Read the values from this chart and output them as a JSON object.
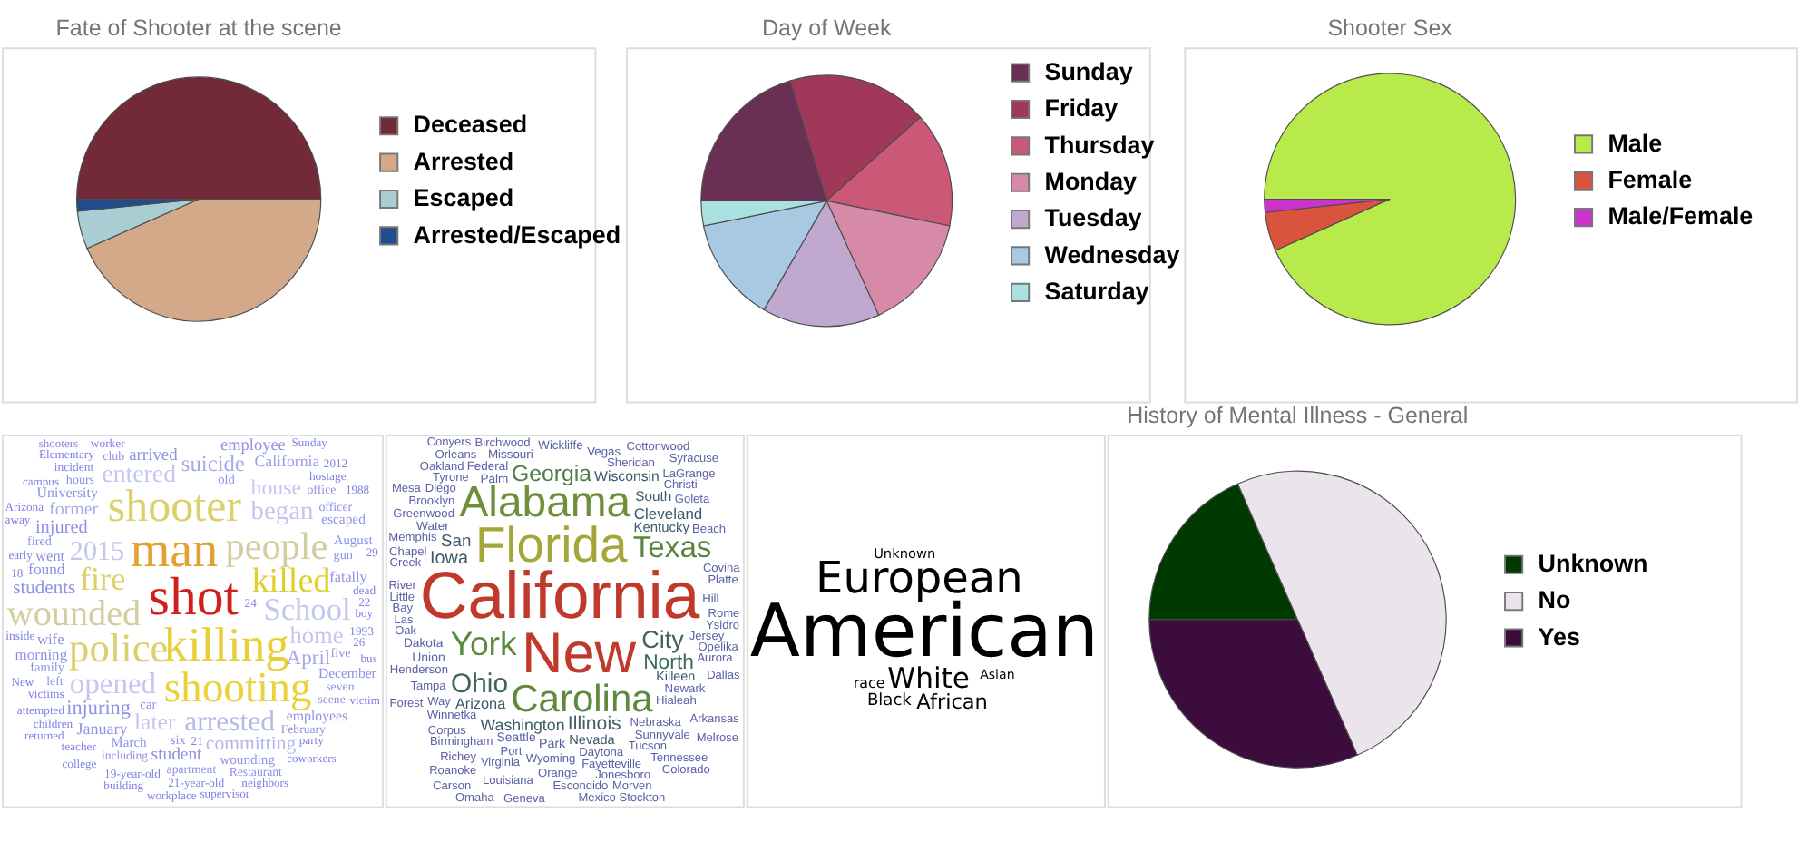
{
  "chart_data": [
    {
      "type": "pie",
      "title": "Fate of Shooter at the scene",
      "categories": [
        "Deceased",
        "Arrested",
        "Escaped",
        "Arrested/Escaped"
      ],
      "values": [
        50,
        43.4,
        5,
        1.6
      ],
      "colors": [
        "#722a38",
        "#d4a98a",
        "#a9cdd2",
        "#224d8c"
      ],
      "legend": "right"
    },
    {
      "type": "pie",
      "title": "Day of Week",
      "categories": [
        "Sunday",
        "Friday",
        "Thursday",
        "Monday",
        "Tuesday",
        "Wednesday",
        "Saturday"
      ],
      "values": [
        20.3,
        18.1,
        14.8,
        15.0,
        15.1,
        13.5,
        3.2
      ],
      "colors": [
        "#6a2f55",
        "#a0385a",
        "#cc5878",
        "#d68aa8",
        "#c1a8cf",
        "#a9c8e2",
        "#a9e0e0"
      ],
      "legend": "right"
    },
    {
      "type": "pie",
      "title": "Shooter Sex",
      "categories": [
        "Male",
        "Female",
        "Male/Female"
      ],
      "values": [
        93.3,
        5.0,
        1.7
      ],
      "colors": [
        "#b8ea4c",
        "#d9533d",
        "#cc33cc"
      ],
      "legend": "right"
    },
    {
      "type": "other",
      "categories": [
        "shot",
        "man",
        "killing",
        "shooter",
        "shooting",
        "police",
        "people",
        "wounded",
        "killed",
        "fire",
        "School",
        "opened",
        "arrested",
        "2015",
        "began",
        "entered",
        "home",
        "later",
        "suicide",
        "house",
        "April",
        "injuring",
        "committing",
        "students",
        "injured",
        "former",
        "student",
        "arrived",
        "employee",
        "January",
        "California",
        "found",
        "morning",
        "wife",
        "went",
        "fatally",
        "University",
        "employees",
        "December",
        "escaped",
        "wounding",
        "March",
        "August",
        "car",
        "old",
        "family",
        "six",
        "gun",
        "five",
        "fired",
        "hours",
        "club",
        "officer",
        "office",
        "seven",
        "left",
        "apartment",
        "scene",
        "Restaurant",
        "February",
        "including",
        "incident",
        "victims",
        "inside",
        "dead",
        "worker",
        "21-year-old",
        "19-year-old",
        "hostage",
        "teacher",
        "attempted",
        "children",
        "Elementary",
        "1993",
        "24",
        "early",
        "party",
        "21",
        "Arizona",
        "22",
        "New",
        "boy",
        "campus",
        "Sunday",
        "away",
        "coworkers",
        "26",
        "2012",
        "1988",
        "18",
        "29",
        "bus",
        "neighbors",
        "supervisor",
        "workplace",
        "building",
        "college",
        "returned",
        "shooters",
        "victim"
      ],
      "colors": [
        "#d0201e",
        "#e3a033",
        "#e8cf38",
        "#dcd06a",
        "#ebd23c",
        "#dcd06a",
        "#d2cea0",
        "#d2cea0",
        "#ddcf2e",
        "#dcd06a",
        "#c3c7f0",
        "#c3c7f0",
        "#b4b9ec",
        "#c3c7f0",
        "#c3c7f0",
        "#c3c7f0",
        "#c3c7f0",
        "#c3c7f0",
        "#a7aaea",
        "#c3c7f0",
        "#a4a6ea",
        "#8e91e5",
        "#b3b6ee",
        "#8e91e5",
        "#8e91e5",
        "#a7aaea",
        "#8e91e5",
        "#8e91e5",
        "#8e91e5",
        "#8e91e5",
        "#9a9de7",
        "#8e91e5",
        "#8e91e5",
        "#8e91e5",
        "#8e91e5",
        "#8e91e5",
        "#8e91e5",
        "#8e91e5",
        "#8e91e5",
        "#8e91e5",
        "#8e91e5",
        "#8e91e5",
        "#8e91e5",
        "#8e91e5",
        "#8e91e5",
        "#8e91e5",
        "#8e91e5",
        "#8e91e5",
        "#8e91e5",
        "#8e91e5",
        "#8e91e5",
        "#8e91e5",
        "#8e91e5",
        "#8e91e5",
        "#8e91e5",
        "#8e91e5",
        "#8e91e5",
        "#8e91e5",
        "#8e91e5",
        "#8e91e5",
        "#8e91e5",
        "#7f82e3",
        "#7f82e3",
        "#7f82e3",
        "#7f82e3",
        "#7f82e3",
        "#7f82e3",
        "#7f82e3",
        "#7f82e3",
        "#7f82e3",
        "#7f82e3",
        "#7f82e3",
        "#7f82e3",
        "#7f82e3",
        "#7f82e3",
        "#7f82e3",
        "#7f82e3",
        "#7f82e3",
        "#7f82e3",
        "#7f82e3",
        "#7f82e3",
        "#7f82e3",
        "#7f82e3",
        "#7f82e3",
        "#7f82e3",
        "#7f82e3",
        "#7f82e3",
        "#7f82e3",
        "#7f82e3",
        "#7f82e3",
        "#7f82e3",
        "#7f82e3",
        "#7f82e3",
        "#7f82e3",
        "#7f82e3",
        "#7f82e3",
        "#7f82e3",
        "#7f82e3",
        "#7f82e3",
        "#7f82e3"
      ]
    },
    {
      "type": "other",
      "categories": [
        "California",
        "New",
        "Florida",
        "Alabama",
        "Carolina",
        "York",
        "Texas",
        "Ohio",
        "City",
        "Georgia",
        "North",
        "Illinois",
        "Iowa",
        "San",
        "Washington",
        "Cleveland",
        "Arizona",
        "Wisconsin",
        "South",
        "Kentucky",
        "Nevada",
        "Killeen",
        "Park",
        "Union",
        "Seattle",
        "Dakota",
        "Water",
        "Palm",
        "Federal",
        "Missouri",
        "Wickliffe",
        "Vegas",
        "Sheridan",
        "Newark",
        "Hialeah",
        "Nebraska",
        "Daytona",
        "Wyoming",
        "Greenwood",
        "Winnetka",
        "Henderson",
        "Birchwood",
        "Memphis",
        "Brooklyn",
        "Jersey",
        "Tampa",
        "Chapel",
        "Sunnyvale",
        "Tyrone",
        "Opelika",
        "Port",
        "Fayetteville",
        "Tucson",
        "Creek",
        "Covina",
        "Christi",
        "Diego",
        "Goleta",
        "Orange",
        "Virginia",
        "Way",
        "Birmingham",
        "Corpus",
        "Oak",
        "Las",
        "Bay",
        "Cottonwood",
        "Hill",
        "Aurora",
        "Beach",
        "Ysidro",
        "Platte",
        "Rome",
        "Oakland",
        "Orleans",
        "LaGrange",
        "Jonesboro",
        "Escondido",
        "Louisiana",
        "Syracuse",
        "Richey",
        "Arkansas",
        "Conyers",
        "Tennessee",
        "Morven",
        "Mexico",
        "Geneva",
        "Roanoke",
        "Colorado",
        "Stockton",
        "Melrose",
        "Omaha",
        "River",
        "Forest",
        "Carson",
        "Dallas",
        "Mesa",
        "Little"
      ],
      "colors": [
        "#c0392b",
        "#c0392b",
        "#a5a63a",
        "#6f8f3a",
        "#5f8a3c",
        "#5b8a3e",
        "#5a843f",
        "#3d6660",
        "#3e6462",
        "#4b7d47",
        "#3b6b5e",
        "#3c5e64",
        "#3c5a6c",
        "#3c5a6c",
        "#3c5e66",
        "#3c5a6c",
        "#3c5a6c",
        "#3c5a6c",
        "#3c5a6c",
        "#3c5a6c",
        "#3c5a6c",
        "#3c5a6c",
        "#5a60a6",
        "#5a60a6",
        "#5a60a6",
        "#5a60a6",
        "#5a60a6",
        "#5a60a6",
        "#5a60a6",
        "#5a60a6",
        "#5a60a6",
        "#5a60a6",
        "#5a60a6",
        "#5a60a6",
        "#5a60a6",
        "#5a60a6",
        "#5a60a6",
        "#5a60a6",
        "#5a60a6",
        "#5a60a6",
        "#5a60a6",
        "#5a60a6",
        "#5a60a6",
        "#5a60a6",
        "#5a60a6",
        "#5a60a6",
        "#5a60a6",
        "#5a60a6",
        "#5a60a6",
        "#5a60a6",
        "#5a60a6",
        "#5a60a6",
        "#5a60a6",
        "#5a60a6",
        "#5a60a6",
        "#5a60a6",
        "#5a60a6",
        "#5a60a6",
        "#5a60a6",
        "#5a60a6",
        "#5a60a6",
        "#5a60a6",
        "#5a60a6",
        "#5a60a6",
        "#5a60a6",
        "#5a60a6",
        "#5a60a6",
        "#5a60a6",
        "#5a60a6",
        "#5a60a6",
        "#5a60a6",
        "#5a60a6",
        "#5a60a6",
        "#5a60a6",
        "#5a60a6",
        "#5a60a6",
        "#5a60a6",
        "#5a60a6",
        "#5a60a6",
        "#5a60a6",
        "#5a60a6",
        "#5a60a6",
        "#5a60a6",
        "#5a60a6",
        "#5a60a6",
        "#5a60a6",
        "#5a60a6",
        "#5a60a6",
        "#5a60a6",
        "#5a60a6",
        "#5a60a6",
        "#5a60a6",
        "#5a60a6",
        "#5a60a6",
        "#5a60a6",
        "#5a60a6",
        "#5a60a6",
        "#5a60a6"
      ]
    },
    {
      "type": "other",
      "categories": [
        "American",
        "European",
        "White",
        "African",
        "Black",
        "race",
        "Unknown",
        "Asian"
      ],
      "colors": [
        "#000000",
        "#000000",
        "#000000",
        "#000000",
        "#000000",
        "#000000",
        "#000000",
        "#000000"
      ]
    },
    {
      "type": "pie",
      "title": "History of Mental Illness - General",
      "categories": [
        "Unknown",
        "No",
        "Yes"
      ],
      "values": [
        18.4,
        50,
        31.6
      ],
      "colors": [
        "#003a00",
        "#ece4ec",
        "#3c0c3c"
      ],
      "legend": "right"
    }
  ]
}
